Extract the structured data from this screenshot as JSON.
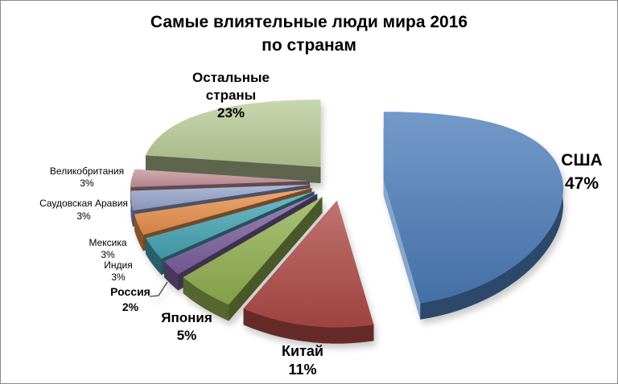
{
  "title": {
    "line1": "Самые влиятельные люди мира 2016",
    "line2": "по странам"
  },
  "chart_data": {
    "type": "pie",
    "style": "3d-exploded",
    "title": "Самые влиятельные люди мира 2016 по странам",
    "unit": "%",
    "start_angle_deg": 0,
    "direction": "clockwise",
    "legend": "none",
    "background": "#FFFFFF",
    "frame_border_color": "#8A8A8A",
    "slices": [
      {
        "label": "США",
        "value": 47,
        "pct_label": "47%",
        "color": "#4C7CB8"
      },
      {
        "label": "Китай",
        "value": 11,
        "pct_label": "11%",
        "color": "#AF4A46"
      },
      {
        "label": "Япония",
        "value": 5,
        "pct_label": "5%",
        "color": "#92B050"
      },
      {
        "label": "Россия",
        "value": 2,
        "pct_label": "2%",
        "color": "#7C619F"
      },
      {
        "label": "Индия",
        "value": 3,
        "pct_label": "3%",
        "color": "#47A4B4"
      },
      {
        "label": "Мексика",
        "value": 3,
        "pct_label": "3%",
        "color": "#E78F4B"
      },
      {
        "label": "Саудовская Аравия",
        "value": 3,
        "pct_label": "3%",
        "color": "#96A4CB"
      },
      {
        "label": "Великобритания",
        "value": 3,
        "pct_label": "3%",
        "color": "#C4939A"
      },
      {
        "label": "Остальные страны",
        "value": 23,
        "pct_label": "23%",
        "color": "#B9CB97"
      }
    ]
  }
}
